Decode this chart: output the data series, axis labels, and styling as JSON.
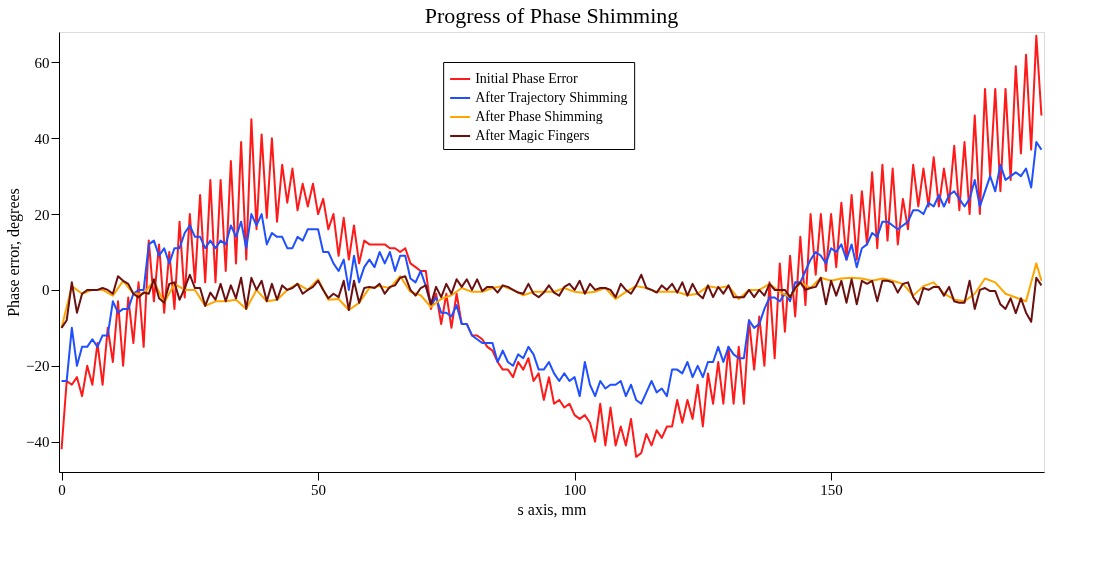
{
  "chart_data": {
    "type": "line",
    "title": "Progress of Phase Shimming",
    "xlabel": "s axis, mm",
    "ylabel": "Phase error, degrees",
    "x": [
      0,
      1,
      2,
      3,
      4,
      5,
      6,
      7,
      8,
      9,
      10,
      11,
      12,
      13,
      14,
      15,
      16,
      17,
      18,
      19,
      20,
      21,
      22,
      23,
      24,
      25,
      26,
      27,
      28,
      29,
      30,
      31,
      32,
      33,
      34,
      35,
      36,
      37,
      38,
      39,
      40,
      41,
      42,
      43,
      44,
      45,
      46,
      47,
      48,
      49,
      50,
      51,
      52,
      53,
      54,
      55,
      56,
      57,
      58,
      59,
      60,
      61,
      62,
      63,
      64,
      65,
      66,
      67,
      68,
      69,
      70,
      71,
      72,
      73,
      74,
      75,
      76,
      77,
      78,
      79,
      80,
      81,
      82,
      83,
      84,
      85,
      86,
      87,
      88,
      89,
      90,
      91,
      92,
      93,
      94,
      95,
      96,
      97,
      98,
      99,
      100,
      101,
      102,
      103,
      104,
      105,
      106,
      107,
      108,
      109,
      110,
      111,
      112,
      113,
      114,
      115,
      116,
      117,
      118,
      119,
      120,
      121,
      122,
      123,
      124,
      125,
      126,
      127,
      128,
      129,
      130,
      131,
      132,
      133,
      134,
      135,
      136,
      137,
      138,
      139,
      140,
      141,
      142,
      143,
      144,
      145,
      146,
      147,
      148,
      149,
      150,
      151,
      152,
      153,
      154,
      155,
      156,
      157,
      158,
      159,
      160,
      161,
      162,
      163,
      164,
      165,
      166,
      167,
      168,
      169,
      170,
      171,
      172,
      173,
      174,
      175,
      176,
      177,
      178,
      179,
      180,
      181,
      182,
      183,
      184,
      185,
      186,
      187,
      188,
      189,
      190,
      191
    ],
    "series": [
      {
        "name": "Initial Phase Error",
        "color": "#ff1a1a",
        "values": [
          -42,
          -24,
          -25,
          -23,
          -28,
          -20,
          -25,
          -14,
          -25,
          -10,
          -19,
          -3,
          -20,
          -2,
          -14,
          2,
          -15,
          13,
          -3,
          12,
          -6,
          10,
          -5,
          18,
          -2,
          20,
          2,
          25,
          2,
          29,
          2,
          29,
          5,
          34,
          7,
          39,
          8,
          45,
          16,
          41,
          19,
          40,
          18,
          33,
          23,
          32,
          21,
          28,
          22,
          28,
          20,
          24,
          16,
          20,
          9,
          19,
          8,
          17,
          7,
          13,
          12,
          12,
          12,
          12,
          11,
          11,
          10,
          11,
          7,
          6,
          5,
          5,
          -5,
          -1,
          -9,
          -1,
          -10,
          -1,
          -9,
          -9,
          -12,
          -12,
          -13,
          -15,
          -16,
          -19,
          -21,
          -21,
          -23,
          -19,
          -21,
          -18,
          -24,
          -22,
          -29,
          -23,
          -30,
          -29,
          -31,
          -30,
          -33,
          -34,
          -33,
          -35,
          -40,
          -30,
          -41,
          -31,
          -41,
          -36,
          -41,
          -34,
          -44,
          -43,
          -38,
          -41,
          -37,
          -39,
          -36,
          -36,
          -29,
          -35,
          -29,
          -34,
          -25,
          -36,
          -22,
          -30,
          -19,
          -30,
          -15,
          -30,
          -15,
          -30,
          -8,
          -21,
          -7,
          -20,
          2,
          -18,
          7,
          -11,
          9,
          -7,
          14,
          -4,
          20,
          4,
          20,
          5,
          20,
          6,
          23,
          8,
          25,
          8,
          26,
          12,
          31,
          11,
          33,
          13,
          32,
          12,
          24,
          16,
          33,
          22,
          32,
          22,
          35,
          22,
          32,
          23,
          38,
          21,
          39,
          20,
          46,
          20,
          53,
          30,
          53,
          26,
          53,
          29,
          59,
          36,
          62,
          37,
          67,
          46
        ]
      },
      {
        "name": "After Trajectory Shimming",
        "color": "#1f4fff",
        "values": [
          -24,
          -24,
          -10,
          -20,
          -15,
          -15,
          -13,
          -15,
          -12,
          -12,
          -3,
          -6,
          -5,
          -5,
          -1,
          0,
          0,
          12,
          13,
          9,
          11,
          7,
          11,
          11,
          15,
          17,
          14,
          14,
          11,
          13,
          11,
          13,
          12,
          17,
          14,
          18,
          11,
          20,
          17,
          20,
          12,
          15,
          14,
          14,
          11,
          11,
          14,
          13,
          16,
          16,
          16,
          10,
          10,
          7,
          5,
          8,
          0,
          9,
          2,
          6,
          8,
          6,
          10,
          7,
          10,
          5,
          9,
          9,
          3,
          2,
          5,
          1,
          -4,
          -2,
          -6,
          -6,
          -7,
          -4,
          -9,
          -9,
          -12,
          -13,
          -14,
          -14,
          -14,
          -19,
          -16,
          -19,
          -20,
          -17,
          -18,
          -15,
          -17,
          -21,
          -21,
          -19,
          -22,
          -24,
          -22,
          -24,
          -23,
          -28,
          -19,
          -25,
          -28,
          -24,
          -26,
          -25,
          -25,
          -24,
          -28,
          -25,
          -29,
          -30,
          -27,
          -24,
          -27,
          -26,
          -28,
          -21,
          -21,
          -22,
          -19,
          -23,
          -20,
          -23,
          -19,
          -19,
          -15,
          -19,
          -15,
          -17,
          -18,
          -18,
          -8,
          -10,
          -9,
          -5,
          -2,
          -2,
          -3,
          -1,
          -3,
          2,
          2,
          5,
          8,
          10,
          9,
          7,
          11,
          10,
          12,
          8,
          12,
          6,
          11,
          12,
          15,
          14,
          18,
          18,
          17,
          16,
          17,
          18,
          21,
          21,
          20,
          23,
          22,
          25,
          22,
          25,
          26,
          24,
          22,
          24,
          29,
          22,
          26,
          30,
          26,
          33,
          29,
          30,
          31,
          30,
          32,
          27,
          39,
          37
        ]
      },
      {
        "name": "After Phase Shimming",
        "color": "#ffa500",
        "x": [
          0,
          2,
          4,
          6,
          8,
          10,
          12,
          14,
          16,
          18,
          20,
          22,
          24,
          26,
          28,
          30,
          32,
          34,
          36,
          38,
          40,
          42,
          44,
          46,
          48,
          50,
          52,
          54,
          56,
          58,
          60,
          62,
          64,
          66,
          68,
          70,
          72,
          74,
          76,
          78,
          80,
          82,
          84,
          86,
          88,
          90,
          92,
          94,
          96,
          98,
          100,
          102,
          104,
          106,
          108,
          110,
          112,
          114,
          116,
          118,
          120,
          122,
          124,
          126,
          128,
          130,
          132,
          134,
          136,
          138,
          140,
          142,
          144,
          146,
          148,
          150,
          152,
          154,
          156,
          158,
          160,
          162,
          164,
          166,
          168,
          170,
          172,
          174,
          176,
          178,
          180,
          182,
          184,
          186,
          188,
          190,
          191
        ],
        "values": [
          -10,
          1,
          -1,
          0,
          0,
          -1.5,
          2.4,
          -1,
          -1,
          2.4,
          -3.4,
          1.6,
          0,
          0,
          -4.2,
          -3,
          -3,
          -2.6,
          -5,
          0,
          -3,
          -2.6,
          0,
          1.6,
          0,
          2.8,
          -2.6,
          -2.4,
          -5.3,
          -3.4,
          0.5,
          1,
          0.5,
          3.6,
          -0.5,
          -1.4,
          -4.5,
          -2.4,
          -1.4,
          0.5,
          -0.5,
          -0.5,
          0.5,
          1,
          0,
          -1.4,
          -0.5,
          -0.5,
          -0.5,
          0.5,
          -0.5,
          -0.8,
          -0.5,
          0.5,
          -2.4,
          -0.5,
          1,
          0.5,
          -0.5,
          -0.5,
          -0.5,
          -1.4,
          -1,
          1,
          0.5,
          1,
          -2.4,
          0,
          0,
          1.6,
          -0.5,
          -1.9,
          2,
          0.5,
          3.2,
          2.4,
          3,
          3.2,
          3,
          2.4,
          3,
          2.4,
          1.6,
          -1.5,
          1,
          2,
          -1,
          -2.5,
          -3,
          -1,
          3,
          2,
          -1,
          -2,
          -3,
          7,
          2.4
        ]
      },
      {
        "name": "After Magic Fingers",
        "color": "#6b0f0f",
        "values": [
          -10,
          -8,
          2,
          -6,
          -1,
          0,
          0,
          0,
          0.5,
          0,
          -1,
          3.6,
          2.4,
          1.6,
          -1,
          -2,
          -0.7,
          -1,
          2.8,
          -2.2,
          -3.4,
          1.6,
          2,
          -2.6,
          0.5,
          4,
          0.5,
          0.5,
          -4.2,
          -0.7,
          -2.6,
          1.6,
          -3,
          1.2,
          -2.2,
          3.2,
          -5,
          3.2,
          0,
          2.4,
          -3,
          1.6,
          -2.6,
          1.2,
          0,
          0.5,
          1.6,
          -1,
          0,
          0.8,
          2.4,
          0,
          -2.2,
          -1,
          -1.9,
          2.4,
          -5.3,
          2.4,
          -3.4,
          0.5,
          0.8,
          0.5,
          1.6,
          -1,
          0.8,
          1.2,
          3.2,
          3.6,
          0,
          -1.5,
          0.5,
          1.2,
          -3.8,
          0.8,
          -1.9,
          1.6,
          -1,
          2.8,
          0.8,
          2.8,
          0,
          2.8,
          -0.3,
          0.8,
          0.8,
          -0.7,
          1.2,
          0.8,
          0,
          -0.7,
          -1,
          1.6,
          -1,
          -1.9,
          -0.7,
          1.2,
          -0.7,
          -1.5,
          0.8,
          1.6,
          0,
          2.4,
          -1,
          1.6,
          0,
          0.5,
          0.5,
          0,
          -1.9,
          1.6,
          0,
          -1,
          1.2,
          4,
          0.5,
          0,
          -0.7,
          1.2,
          0,
          1.6,
          -0.7,
          2,
          -1.5,
          1.6,
          -1,
          -2.2,
          1.2,
          -1.9,
          0.8,
          -1,
          1.2,
          -1.9,
          -1.9,
          -1.9,
          0,
          -1.9,
          0,
          -1.5,
          1.6,
          0,
          0,
          0,
          -1.9,
          0.5,
          2,
          0,
          0.5,
          0.8,
          3.2,
          -3.8,
          2.4,
          -1.5,
          2.4,
          -3.4,
          2.8,
          -3.8,
          2.4,
          1.6,
          2.4,
          -3,
          2.4,
          2.4,
          2,
          -0.7,
          1.6,
          2,
          -1.9,
          -3.8,
          0.5,
          0,
          0.8,
          0.8,
          -1.5,
          0.8,
          -3,
          -3.4,
          -3.4,
          2.4,
          -5,
          0,
          0.5,
          -0.3,
          -0.3,
          -3.8,
          -5,
          -2.2,
          -6.1,
          -2.2,
          -6,
          -8.4,
          3.2,
          1.2
        ]
      }
    ],
    "xlim": [
      -0.5,
      191.5
    ],
    "ylim": [
      -48,
      68
    ],
    "xticks": [
      0,
      50,
      100,
      150
    ],
    "yticks": [
      -40,
      -20,
      0,
      20,
      40,
      60
    ],
    "grid": false,
    "legend": "top",
    "line_style": "solid",
    "marker": "none"
  }
}
